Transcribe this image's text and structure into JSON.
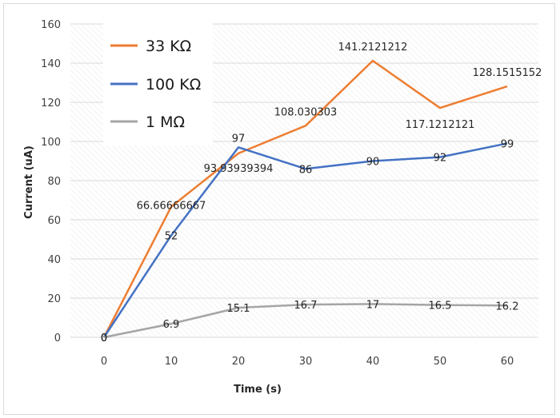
{
  "chart_data": {
    "type": "line",
    "title": "",
    "xlabel": "Time (s)",
    "ylabel": "Current (uA)",
    "x": [
      0,
      10,
      20,
      30,
      40,
      50,
      60
    ],
    "xlim": [
      0,
      60
    ],
    "ylim": [
      0,
      160
    ],
    "yticks": [
      "0",
      "20",
      "40",
      "60",
      "80",
      "100",
      "120",
      "140",
      "160"
    ],
    "xticks": [
      "0",
      "10",
      "20",
      "30",
      "40",
      "50",
      "60"
    ],
    "legend_position": "top-left",
    "series": [
      {
        "name": "33 KΩ",
        "color": "#ED7D31",
        "values": [
          0,
          66.66666667,
          93.93939394,
          108.030303,
          141.2121212,
          117.1212121,
          128.1515152
        ],
        "labels": [
          "0",
          "66.66666667",
          "93.93939394",
          "108.030303",
          "141.2121212",
          "117.1212121",
          "128.1515152"
        ]
      },
      {
        "name": "100 KΩ",
        "color": "#4472C4",
        "values": [
          0,
          52,
          97,
          86,
          90,
          92,
          99
        ],
        "labels": [
          "0",
          "52",
          "97",
          "86",
          "90",
          "92",
          "99"
        ]
      },
      {
        "name": "1 MΩ",
        "color": "#A5A5A5",
        "values": [
          0,
          6.9,
          15.1,
          16.7,
          17,
          16.5,
          16.2
        ],
        "labels": [
          "0",
          "6.9",
          "15.1",
          "16.7",
          "17",
          "16.5",
          "16.2"
        ]
      }
    ]
  }
}
